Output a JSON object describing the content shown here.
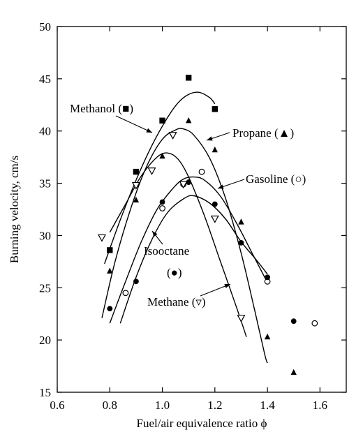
{
  "chart_data": {
    "type": "scatter",
    "xlabel": "Fuel/air equivalence ratio ϕ",
    "ylabel": "Burning velocity, cm/s",
    "xlim": [
      0.6,
      1.7
    ],
    "ylim": [
      15,
      50
    ],
    "xticks": [
      0.6,
      0.8,
      1.0,
      1.2,
      1.4,
      1.6
    ],
    "yticks": [
      15,
      20,
      25,
      30,
      35,
      40,
      45,
      50
    ],
    "xtick_labels": [
      "0.6",
      "0.8",
      "1.0",
      "1.2",
      "1.4",
      "1.6"
    ],
    "ytick_labels": [
      "15",
      "20",
      "25",
      "30",
      "35",
      "40",
      "45",
      "50"
    ],
    "grid": false,
    "series": [
      {
        "name": "Methanol",
        "marker": "filled-square",
        "points": [
          [
            0.8,
            28.6
          ],
          [
            0.9,
            36.1
          ],
          [
            1.0,
            41.0
          ],
          [
            1.1,
            45.1
          ],
          [
            1.2,
            42.1
          ]
        ],
        "curve": [
          [
            0.78,
            27.3
          ],
          [
            0.84,
            31.5
          ],
          [
            0.9,
            35.3
          ],
          [
            0.96,
            38.6
          ],
          [
            1.02,
            41.3
          ],
          [
            1.06,
            42.7
          ],
          [
            1.1,
            43.5
          ],
          [
            1.14,
            43.7
          ],
          [
            1.18,
            43.2
          ],
          [
            1.2,
            42.6
          ]
        ]
      },
      {
        "name": "Propane",
        "marker": "filled-triangle",
        "points": [
          [
            0.8,
            26.6
          ],
          [
            0.9,
            33.4
          ],
          [
            1.0,
            37.6
          ],
          [
            1.1,
            41.0
          ],
          [
            1.2,
            38.2
          ],
          [
            1.3,
            31.3
          ],
          [
            1.4,
            20.3
          ],
          [
            1.5,
            16.9
          ]
        ],
        "curve": [
          [
            0.77,
            22.1
          ],
          [
            0.82,
            27.5
          ],
          [
            0.88,
            32.6
          ],
          [
            0.94,
            36.6
          ],
          [
            1.0,
            39.2
          ],
          [
            1.05,
            40.1
          ],
          [
            1.08,
            40.2
          ],
          [
            1.12,
            39.6
          ],
          [
            1.18,
            37.4
          ],
          [
            1.24,
            33.6
          ],
          [
            1.3,
            28.3
          ],
          [
            1.35,
            23.0
          ],
          [
            1.39,
            18.6
          ],
          [
            1.4,
            17.8
          ]
        ]
      },
      {
        "name": "Gasoline",
        "marker": "open-circle",
        "points": [
          [
            0.86,
            24.5
          ],
          [
            1.0,
            32.6
          ],
          [
            1.08,
            34.9
          ],
          [
            1.15,
            36.1
          ],
          [
            1.4,
            25.6
          ],
          [
            1.58,
            21.6
          ]
        ],
        "curve": [
          [
            0.8,
            21.6
          ],
          [
            0.86,
            25.6
          ],
          [
            0.92,
            29.4
          ],
          [
            0.98,
            32.5
          ],
          [
            1.04,
            34.5
          ],
          [
            1.08,
            35.4
          ],
          [
            1.12,
            35.6
          ],
          [
            1.16,
            35.3
          ],
          [
            1.22,
            33.8
          ],
          [
            1.28,
            31.3
          ],
          [
            1.34,
            28.4
          ],
          [
            1.4,
            25.5
          ]
        ]
      },
      {
        "name": "Isooctane",
        "marker": "filled-circle",
        "points": [
          [
            0.8,
            23.0
          ],
          [
            0.9,
            25.6
          ],
          [
            1.0,
            33.2
          ],
          [
            1.1,
            35.1
          ],
          [
            1.2,
            33.0
          ],
          [
            1.3,
            29.3
          ],
          [
            1.4,
            26.0
          ],
          [
            1.5,
            21.8
          ]
        ],
        "curve": [
          [
            0.84,
            21.6
          ],
          [
            0.9,
            26.0
          ],
          [
            0.96,
            29.6
          ],
          [
            1.02,
            32.2
          ],
          [
            1.08,
            33.5
          ],
          [
            1.12,
            33.8
          ],
          [
            1.18,
            33.1
          ],
          [
            1.24,
            31.6
          ],
          [
            1.3,
            29.4
          ],
          [
            1.36,
            27.6
          ],
          [
            1.4,
            26.3
          ]
        ]
      },
      {
        "name": "Methane",
        "marker": "open-inverted-triangle",
        "points": [
          [
            0.77,
            29.8
          ],
          [
            0.9,
            34.8
          ],
          [
            0.96,
            36.2
          ],
          [
            1.04,
            39.6
          ],
          [
            1.08,
            34.9
          ],
          [
            1.2,
            31.6
          ],
          [
            1.3,
            22.1
          ]
        ],
        "curve": [
          [
            0.8,
            30.3
          ],
          [
            0.86,
            33.0
          ],
          [
            0.92,
            35.7
          ],
          [
            0.98,
            37.5
          ],
          [
            1.02,
            37.9
          ],
          [
            1.06,
            37.3
          ],
          [
            1.1,
            35.6
          ],
          [
            1.16,
            31.9
          ],
          [
            1.22,
            27.6
          ],
          [
            1.28,
            23.3
          ],
          [
            1.32,
            20.3
          ]
        ]
      }
    ],
    "annotations": {
      "methanol": "Methanol (■)",
      "propane": "Propane (▲)",
      "gasoline": "Gasoline (○)",
      "isooctane_line1": "Isooctane",
      "isooctane_line2": "(●)",
      "methane": "Methane (▿)"
    }
  }
}
